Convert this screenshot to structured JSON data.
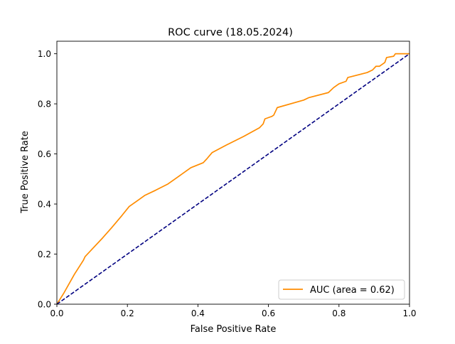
{
  "chart_data": {
    "type": "line",
    "title": "ROC curve (18.05.2024)",
    "xlabel": "False Positive Rate",
    "ylabel": "True Positive Rate",
    "xlim": [
      0.0,
      1.0
    ],
    "ylim": [
      0.0,
      1.05
    ],
    "x_ticks": [
      0.0,
      0.2,
      0.4,
      0.6,
      0.8,
      1.0
    ],
    "x_tick_labels": [
      "0.0",
      "0.2",
      "0.4",
      "0.6",
      "0.8",
      "1.0"
    ],
    "y_ticks": [
      0.0,
      0.2,
      0.4,
      0.6,
      0.8,
      1.0
    ],
    "y_tick_labels": [
      "0.0",
      "0.2",
      "0.4",
      "0.6",
      "0.8",
      "1.0"
    ],
    "grid": false,
    "legend_position": "lower-right",
    "series": [
      {
        "name": "AUC (area = 0.62)",
        "color": "#ff8c00",
        "style": "solid",
        "x": [
          0.0,
          0.02,
          0.05,
          0.075,
          0.08,
          0.1,
          0.13,
          0.155,
          0.185,
          0.205,
          0.23,
          0.25,
          0.28,
          0.315,
          0.345,
          0.37,
          0.38,
          0.415,
          0.425,
          0.44,
          0.48,
          0.53,
          0.575,
          0.585,
          0.59,
          0.61,
          0.615,
          0.625,
          0.7,
          0.715,
          0.77,
          0.785,
          0.8,
          0.82,
          0.825,
          0.88,
          0.895,
          0.905,
          0.915,
          0.925,
          0.93,
          0.935,
          0.955,
          0.96,
          0.97,
          1.0
        ],
        "y": [
          0.0,
          0.045,
          0.12,
          0.175,
          0.19,
          0.22,
          0.265,
          0.305,
          0.355,
          0.39,
          0.415,
          0.435,
          0.455,
          0.48,
          0.51,
          0.535,
          0.545,
          0.565,
          0.58,
          0.605,
          0.635,
          0.67,
          0.705,
          0.72,
          0.74,
          0.75,
          0.755,
          0.785,
          0.815,
          0.825,
          0.845,
          0.865,
          0.88,
          0.89,
          0.905,
          0.925,
          0.935,
          0.95,
          0.95,
          0.96,
          0.965,
          0.985,
          0.99,
          1.0,
          1.0,
          1.0
        ]
      },
      {
        "name": "",
        "color": "#000080",
        "style": "dashed",
        "x": [
          0.0,
          1.0
        ],
        "y": [
          0.0,
          1.0
        ]
      }
    ]
  }
}
